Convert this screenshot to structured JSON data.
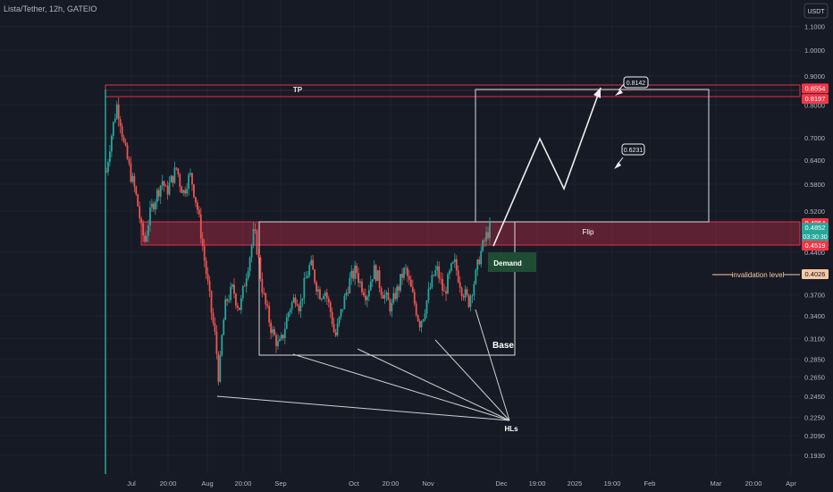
{
  "header": {
    "symbol_label": "Lista/Tether, 12h, GATEIO"
  },
  "currency": {
    "label": "USDT"
  },
  "colors": {
    "background": "#161a25",
    "grid": "#1f2330",
    "axis_text": "#b2b5be",
    "bull": "#26a69a",
    "bear": "#ef5350",
    "zone_red": "#e0314a",
    "demand_green": "#1f4d33",
    "white": "#e6e6e6"
  },
  "chart_data": {
    "type": "candlestick",
    "title": "Lista/Tether, 12h, GATEIO",
    "y_scale": "log",
    "ylim": [
      0.18,
      1.2
    ],
    "x_ticks": [
      "Jul",
      "20:00",
      "Aug",
      "20:00",
      "Sep",
      "Oct",
      "20:00",
      "Nov",
      "Dec",
      "19:00",
      "2025",
      "19:00",
      "Feb",
      "Mar",
      "20:00",
      "Apr"
    ],
    "y_ticks": [
      "1.1000",
      "1.0000",
      "0.9000",
      "0.8000",
      "0.7000",
      "0.6400",
      "0.5800",
      "0.5200",
      "0.4400",
      "0.3700",
      "0.3400",
      "0.3100",
      "0.2850",
      "0.2650",
      "0.2450",
      "0.2250",
      "0.2090",
      "0.1930"
    ],
    "price_badges": [
      {
        "value": "0.8554",
        "color": "#f23645"
      },
      {
        "value": "0.8197",
        "color": "#f23645"
      },
      {
        "value": "0.4954",
        "color": "#f23645"
      },
      {
        "value": "0.4852",
        "sub": "03:30:30",
        "color": "#26a69a"
      },
      {
        "value": "0.4519",
        "color": "#f23645"
      },
      {
        "value": "0.4026",
        "color": "#f7c9a0"
      }
    ],
    "annotations": {
      "tp_label": "TP",
      "flip_label": "Flip",
      "demand_label": "Demand",
      "base_label": "Base",
      "hls_label": "HLs",
      "invalidation_label": "invalidation level",
      "target_1": "0.8142",
      "target_2": "0.6231"
    },
    "zones": {
      "tp": [
        0.8197,
        0.8554
      ],
      "flip": [
        0.4519,
        0.4954
      ],
      "demand": [
        0.4026,
        0.435
      ],
      "base": [
        0.29,
        0.4954
      ],
      "invalidation": 0.4026
    },
    "price_series": [
      0.61,
      0.68,
      0.74,
      0.8,
      0.75,
      0.68,
      0.64,
      0.6,
      0.57,
      0.53,
      0.48,
      0.46,
      0.5,
      0.53,
      0.55,
      0.57,
      0.59,
      0.56,
      0.58,
      0.6,
      0.62,
      0.58,
      0.56,
      0.59,
      0.6,
      0.56,
      0.52,
      0.47,
      0.42,
      0.38,
      0.34,
      0.31,
      0.26,
      0.32,
      0.36,
      0.37,
      0.38,
      0.36,
      0.35,
      0.38,
      0.41,
      0.44,
      0.48,
      0.44,
      0.39,
      0.36,
      0.34,
      0.32,
      0.31,
      0.3,
      0.31,
      0.33,
      0.35,
      0.36,
      0.37,
      0.35,
      0.38,
      0.4,
      0.42,
      0.4,
      0.38,
      0.37,
      0.38,
      0.36,
      0.34,
      0.31,
      0.33,
      0.35,
      0.37,
      0.39,
      0.4,
      0.41,
      0.39,
      0.38,
      0.37,
      0.39,
      0.41,
      0.4,
      0.38,
      0.37,
      0.36,
      0.35,
      0.37,
      0.38,
      0.4,
      0.41,
      0.39,
      0.37,
      0.35,
      0.33,
      0.34,
      0.36,
      0.38,
      0.4,
      0.41,
      0.39,
      0.37,
      0.39,
      0.41,
      0.42,
      0.4,
      0.38,
      0.37,
      0.36,
      0.38,
      0.4,
      0.43,
      0.45,
      0.47,
      0.485
    ]
  }
}
